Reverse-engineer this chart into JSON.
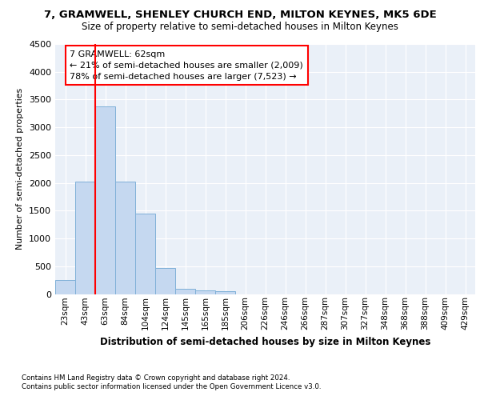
{
  "title": "7, GRAMWELL, SHENLEY CHURCH END, MILTON KEYNES, MK5 6DE",
  "subtitle": "Size of property relative to semi-detached houses in Milton Keynes",
  "xlabel": "Distribution of semi-detached houses by size in Milton Keynes",
  "ylabel": "Number of semi-detached properties",
  "categories": [
    "23sqm",
    "43sqm",
    "63sqm",
    "84sqm",
    "104sqm",
    "124sqm",
    "145sqm",
    "165sqm",
    "185sqm",
    "206sqm",
    "226sqm",
    "246sqm",
    "266sqm",
    "287sqm",
    "307sqm",
    "327sqm",
    "348sqm",
    "368sqm",
    "388sqm",
    "409sqm",
    "429sqm"
  ],
  "values": [
    250,
    2020,
    3370,
    2020,
    1450,
    470,
    100,
    60,
    50,
    0,
    0,
    0,
    0,
    0,
    0,
    0,
    0,
    0,
    0,
    0,
    0
  ],
  "bar_color": "#c5d8f0",
  "bar_edge_color": "#7fb0d8",
  "vline_x": 1.5,
  "vline_color": "red",
  "annotation_text": "7 GRAMWELL: 62sqm\n← 21% of semi-detached houses are smaller (2,009)\n78% of semi-detached houses are larger (7,523) →",
  "annotation_box_color": "white",
  "annotation_box_edge_color": "red",
  "ylim": [
    0,
    4500
  ],
  "yticks": [
    0,
    500,
    1000,
    1500,
    2000,
    2500,
    3000,
    3500,
    4000,
    4500
  ],
  "bg_color": "#eaf0f8",
  "footer_line1": "Contains HM Land Registry data © Crown copyright and database right 2024.",
  "footer_line2": "Contains public sector information licensed under the Open Government Licence v3.0."
}
